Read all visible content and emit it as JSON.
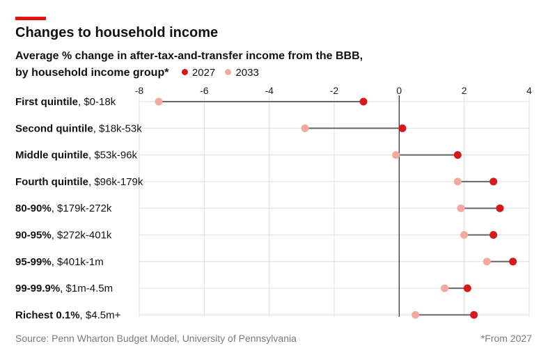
{
  "title": "Changes to household income",
  "subtitle_line1": "Average % change in after-tax-and-transfer income from the BBB,",
  "subtitle_line2": "by household income group*",
  "colors": {
    "accent": "#e3120b",
    "y2027": "#d7191c",
    "y2033": "#f4a9a0",
    "connector": "#666666",
    "grid": "#dddddd",
    "zero": "#222222"
  },
  "chart_data": {
    "type": "dot-range",
    "title": "Changes to household income",
    "xlabel": "",
    "ylabel": "",
    "xlim": [
      -8,
      4
    ],
    "xticks": [
      -8,
      -6,
      -4,
      -2,
      0,
      2,
      4
    ],
    "xtick_labels": [
      "-8",
      "-6",
      "-4",
      "-2",
      "0",
      "2",
      "4"
    ],
    "legend": [
      "2027",
      "2033"
    ],
    "categories": [
      {
        "bold": "First quintile",
        "range": ", $0-18k"
      },
      {
        "bold": "Second quintile",
        "range": ", $18k-53k"
      },
      {
        "bold": "Middle quintile",
        "range": ", $53k-96k"
      },
      {
        "bold": "Fourth quintile",
        "range": ", $96k-179k"
      },
      {
        "bold": "80-90%",
        "range": ", $179k-272k"
      },
      {
        "bold": "90-95%",
        "range": ", $272k-401k"
      },
      {
        "bold": "95-99%",
        "range": ", $401k-1m"
      },
      {
        "bold": "99-99.9%",
        "range": ", $1m-4.5m"
      },
      {
        "bold": "Richest 0.1%",
        "range": ", $4.5m+"
      }
    ],
    "series": [
      {
        "name": "2027",
        "values": [
          -1.1,
          0.1,
          1.8,
          2.9,
          3.1,
          2.9,
          3.5,
          2.1,
          2.3
        ]
      },
      {
        "name": "2033",
        "values": [
          -7.4,
          -2.9,
          -0.1,
          1.8,
          1.9,
          2.0,
          2.7,
          1.4,
          0.5
        ]
      }
    ]
  },
  "footer": {
    "source": "Source: Penn Wharton Budget Model, University of Pennsylvania",
    "note": "*From 2027"
  }
}
